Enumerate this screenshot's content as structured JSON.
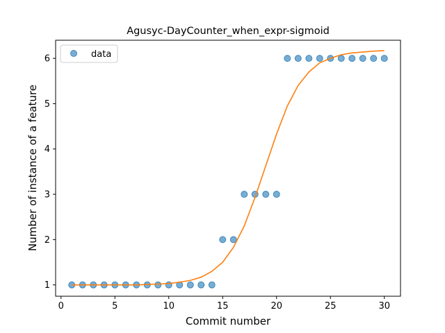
{
  "chart_data": {
    "type": "scatter",
    "title": "Agusyc-DayCounter_when_expr-sigmoid",
    "xlabel": "Commit number",
    "ylabel": "Number of instance of a feature",
    "xlim": [
      -0.5,
      31.5
    ],
    "ylim": [
      0.75,
      6.4
    ],
    "xticks": [
      0,
      5,
      10,
      15,
      20,
      25,
      30
    ],
    "yticks": [
      1,
      2,
      3,
      4,
      5,
      6
    ],
    "grid": false,
    "legend_position": "top-left",
    "series": [
      {
        "name": "data",
        "kind": "scatter",
        "color": "#1f77b4",
        "x": [
          1,
          2,
          3,
          4,
          5,
          6,
          7,
          8,
          9,
          10,
          11,
          12,
          13,
          14,
          15,
          16,
          17,
          18,
          19,
          20,
          21,
          22,
          23,
          24,
          25,
          26,
          27,
          28,
          29,
          30
        ],
        "y": [
          1,
          1,
          1,
          1,
          1,
          1,
          1,
          1,
          1,
          1,
          1,
          1,
          1,
          1,
          2,
          2,
          3,
          3,
          3,
          3,
          6,
          6,
          6,
          6,
          6,
          6,
          6,
          6,
          6,
          6
        ]
      },
      {
        "kind": "line",
        "color": "#ff7f0e",
        "x": [
          1,
          2,
          3,
          4,
          5,
          6,
          7,
          8,
          9,
          10,
          11,
          12,
          13,
          14,
          15,
          16,
          17,
          18,
          19,
          20,
          21,
          22,
          23,
          24,
          25,
          26,
          27,
          28,
          29,
          30
        ],
        "y": [
          1.0,
          1.0,
          1.0,
          1.0,
          1.0,
          1.0,
          1.0,
          1.01,
          1.02,
          1.03,
          1.06,
          1.1,
          1.17,
          1.3,
          1.5,
          1.83,
          2.3,
          2.93,
          3.63,
          4.33,
          4.95,
          5.4,
          5.7,
          5.9,
          6.0,
          6.08,
          6.12,
          6.14,
          6.16,
          6.17
        ]
      }
    ]
  }
}
